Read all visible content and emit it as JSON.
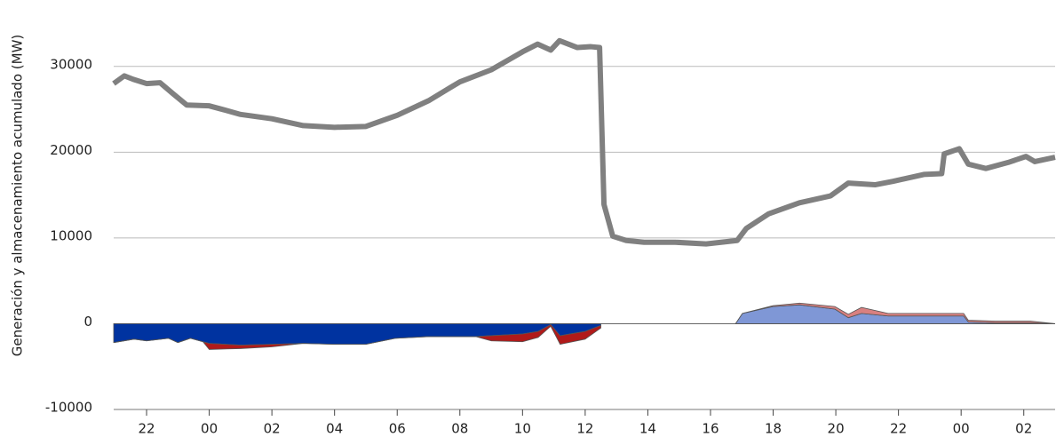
{
  "chart_data": {
    "type": "area",
    "y_label": "Generación y almacenamiento acumulado (MW)",
    "xlim": [
      -0.05,
      30
    ],
    "ylim": [
      -10000,
      33600
    ],
    "xticks": [
      {
        "value": 1,
        "label": "22"
      },
      {
        "value": 3,
        "label": "00"
      },
      {
        "value": 5,
        "label": "02"
      },
      {
        "value": 7,
        "label": "04"
      },
      {
        "value": 9,
        "label": "06"
      },
      {
        "value": 11,
        "label": "08"
      },
      {
        "value": 13,
        "label": "10"
      },
      {
        "value": 15,
        "label": "12"
      },
      {
        "value": 17,
        "label": "14"
      },
      {
        "value": 19,
        "label": "16"
      },
      {
        "value": 21,
        "label": "18"
      },
      {
        "value": 23,
        "label": "20"
      },
      {
        "value": 25,
        "label": "22"
      },
      {
        "value": 27,
        "label": "00"
      },
      {
        "value": 29,
        "label": "02"
      }
    ],
    "yticks": [
      -10000,
      0,
      10000,
      20000,
      30000
    ],
    "grid": true,
    "series": [
      {
        "kind": "area",
        "color": "#0033a0",
        "x": [
          -0.05,
          0.6,
          1,
          1.7,
          2,
          2.4,
          2.8,
          3,
          4,
          5,
          6,
          7,
          8,
          8.94,
          10,
          11,
          11.5,
          12,
          13,
          13.5,
          13.9,
          14.2,
          15,
          15.5
        ],
        "values": [
          -2200,
          -1800,
          -2000,
          -1700,
          -2200,
          -1700,
          -2100,
          -2300,
          -2500,
          -2400,
          -2300,
          -2400,
          -2400,
          -1700,
          -1500,
          -1500,
          -1500,
          -1400,
          -1200,
          -900,
          -100,
          -1400,
          -900,
          -200
        ]
      },
      {
        "kind": "area",
        "color": "#b01a1a",
        "x": [
          -0.05,
          0.6,
          1,
          1.7,
          2,
          2.4,
          2.8,
          3,
          4,
          5,
          6,
          7,
          8,
          8.94,
          10,
          11,
          11.5,
          12,
          13,
          13.5,
          13.9,
          14.2,
          15,
          15.5
        ],
        "values": [
          0,
          0,
          0,
          0,
          0,
          0,
          0,
          -700,
          -400,
          -300,
          0,
          0,
          0,
          0,
          0,
          0,
          0,
          -600,
          -900,
          -700,
          -200,
          -1000,
          -900,
          -300
        ]
      },
      {
        "kind": "area",
        "color": "#7f97d6",
        "x": [
          19.8,
          20.02,
          20.99,
          21.84,
          22.97,
          23.4,
          23.82,
          24.67,
          27.08,
          27.23,
          28.08,
          29.21,
          30
        ],
        "values": [
          0,
          1200,
          2000,
          2200,
          1700,
          700,
          1200,
          900,
          900,
          200,
          100,
          100,
          0
        ]
      },
      {
        "kind": "area",
        "color": "#d98080",
        "x": [
          19.8,
          20.02,
          20.99,
          21.84,
          22.97,
          23.4,
          23.82,
          24.67,
          27.08,
          27.23,
          28.08,
          29.21,
          30
        ],
        "values": [
          0,
          0,
          100,
          200,
          300,
          400,
          700,
          300,
          300,
          200,
          200,
          200,
          0
        ]
      },
      {
        "kind": "line",
        "color": "#808080",
        "x": [
          -0.05,
          0.29,
          0.57,
          1,
          1.43,
          1.85,
          2.28,
          3,
          3.41,
          4,
          5,
          6,
          7,
          8,
          9,
          10,
          11,
          12,
          13,
          13.48,
          13.9,
          14.18,
          14.75,
          15.18,
          15.46,
          15.6,
          15.88,
          16.31,
          16.88,
          17.87,
          18.86,
          19.85,
          20.14,
          20.85,
          21.84,
          22.83,
          23.4,
          24.25,
          24.82,
          25.81,
          26.38,
          26.46,
          26.94,
          27.23,
          27.79,
          28.5,
          29.07,
          29.35,
          30
        ],
        "values": [
          28000,
          28900,
          28500,
          28000,
          28100,
          26800,
          25500,
          25400,
          25000,
          24400,
          23900,
          23100,
          22900,
          23000,
          24300,
          26000,
          28200,
          29600,
          31700,
          32600,
          31900,
          33000,
          32200,
          32300,
          32200,
          13900,
          10200,
          9700,
          9500,
          9500,
          9300,
          9700,
          11100,
          12800,
          14100,
          14900,
          16400,
          16200,
          16600,
          17400,
          17500,
          19800,
          20400,
          18600,
          18100,
          18800,
          19500,
          18900,
          19400
        ]
      }
    ]
  }
}
